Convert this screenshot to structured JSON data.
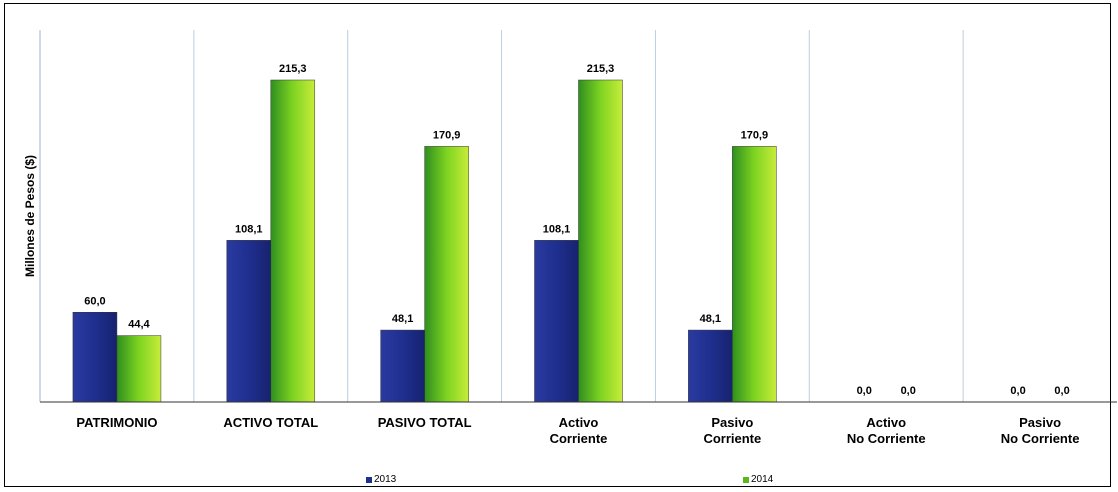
{
  "chart_data": {
    "type": "bar",
    "title": "",
    "xlabel": "",
    "ylabel": "Millones de Pesos ($)",
    "ylim": [
      0,
      240
    ],
    "grid": false,
    "legend_position": "bottom",
    "categories": [
      [
        "PATRIMONIO"
      ],
      [
        "ACTIVO TOTAL"
      ],
      [
        "PASIVO TOTAL"
      ],
      [
        "Activo",
        "Corriente"
      ],
      [
        "Pasivo",
        "Corriente"
      ],
      [
        "Activo",
        "No Corriente"
      ],
      [
        "Pasivo",
        "No Corriente"
      ]
    ],
    "series": [
      {
        "name": "2013",
        "values": [
          60.0,
          108.1,
          48.1,
          108.1,
          48.1,
          0.0,
          0.0
        ],
        "labels": [
          "60,0",
          "108,1",
          "48,1",
          "108,1",
          "48,1",
          "0,0",
          "0,0"
        ],
        "color": "#1f2f8f"
      },
      {
        "name": "2014",
        "values": [
          44.4,
          215.3,
          170.9,
          215.3,
          170.9,
          0.0,
          0.0
        ],
        "labels": [
          "44,4",
          "215,3",
          "170,9",
          "215,3",
          "170,9",
          "0,0",
          "0,0"
        ],
        "color": "#58b81e"
      }
    ]
  }
}
